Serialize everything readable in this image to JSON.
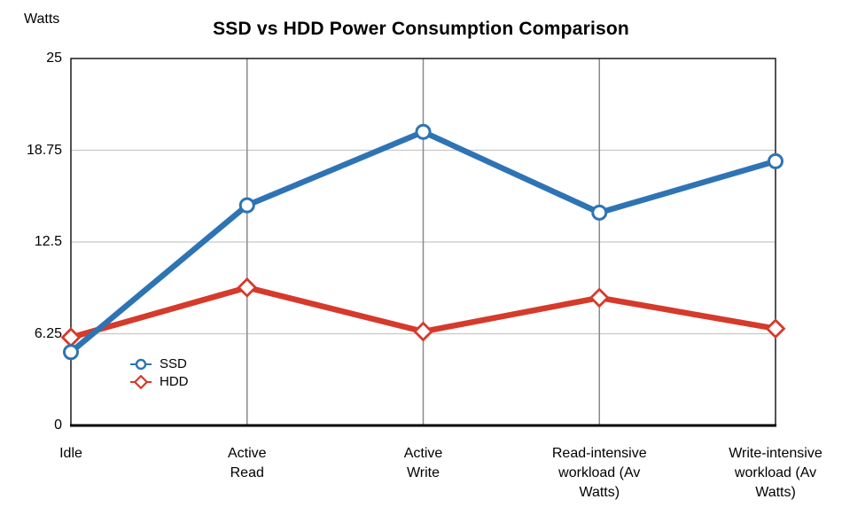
{
  "page": {
    "background": "#ffffff"
  },
  "chart_data": {
    "type": "line",
    "title": "SSD vs HDD Power Consumption Comparison",
    "ylabel": "Watts",
    "xlabel": "",
    "ylim": [
      0,
      25
    ],
    "yticks": [
      0,
      6.25,
      12.5,
      18.75,
      25
    ],
    "ytick_labels": [
      "0",
      "6.25",
      "12.5",
      "18.75",
      "25"
    ],
    "grid": {
      "horizontal": true,
      "vertical": true
    },
    "legend_position": "inside-bottom-left",
    "categories": [
      "Idle",
      "Active Read",
      "Active Write",
      "Read-intensive workload (Av Watts)",
      "Write-intensive workload (Av Watts)"
    ],
    "category_label_lines": [
      [
        "Idle"
      ],
      [
        "Active",
        "Read"
      ],
      [
        "Active",
        "Write"
      ],
      [
        "Read-intensive",
        "workload (Av",
        "Watts)"
      ],
      [
        "Write-intensive",
        "workload (Av",
        "Watts)"
      ]
    ],
    "series": [
      {
        "name": "SSD",
        "marker": "circle",
        "color": "#2E74B4",
        "values": [
          5,
          15,
          20,
          14.5,
          18
        ]
      },
      {
        "name": "HDD",
        "marker": "diamond",
        "color": "#D53A2B",
        "values": [
          6,
          9.4,
          6.4,
          8.7,
          6.6
        ]
      }
    ],
    "colors": {
      "border": "#1a1a1a",
      "axis": "#000000",
      "grid_horizontal": "#c8c8c8",
      "grid_vertical": "#8a8a8a",
      "marker_fill": "#ffffff",
      "text": "#000000"
    }
  }
}
